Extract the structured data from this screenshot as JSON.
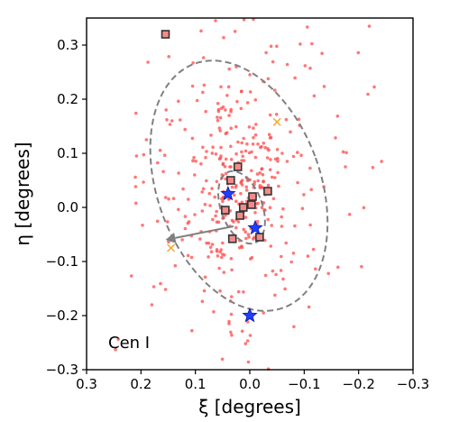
{
  "chart_data": {
    "type": "scatter",
    "title": "",
    "xlabel": "ξ [degrees]",
    "ylabel": "η [degrees]",
    "xlim": [
      0.3,
      -0.3
    ],
    "ylim": [
      -0.3,
      0.35
    ],
    "x_ticks": [
      0.3,
      0.2,
      0.1,
      0.0,
      -0.1,
      -0.2,
      -0.3
    ],
    "x_tick_labels": [
      "0.3",
      "0.2",
      "0.1",
      "0.0",
      "−0.1",
      "−0.2",
      "−0.3"
    ],
    "y_ticks": [
      -0.3,
      -0.2,
      -0.1,
      0.0,
      0.1,
      0.2,
      0.3
    ],
    "y_tick_labels": [
      "−0.3",
      "−0.2",
      "−0.1",
      "0.0",
      "0.1",
      "0.2",
      "0.3"
    ],
    "grid": false,
    "annotation": "Cen I",
    "colors": {
      "members": "#ff4a4a",
      "squares": "#333333",
      "stars": "#1f3fff",
      "crosses": "#f5a623",
      "ellipse": "#808080",
      "arrow": "#808080"
    },
    "ellipses": [
      {
        "name": "outer",
        "center": [
          0.02,
          0.04
        ],
        "semi_axes": [
          0.15,
          0.24
        ],
        "position_angle_deg": 20
      },
      {
        "name": "inner",
        "center": [
          0.015,
          0.0
        ],
        "semi_axes": [
          0.038,
          0.07
        ],
        "position_angle_deg": 20
      }
    ],
    "arrow": {
      "from": [
        0.03,
        -0.035
      ],
      "to": [
        0.155,
        -0.06
      ]
    },
    "squares": [
      [
        0.155,
        0.32
      ],
      [
        0.022,
        0.075
      ],
      [
        0.035,
        0.05
      ],
      [
        0.045,
        -0.005
      ],
      [
        0.012,
        0.0
      ],
      [
        0.018,
        -0.015
      ],
      [
        -0.005,
        0.02
      ],
      [
        -0.033,
        0.03
      ],
      [
        -0.003,
        0.005
      ],
      [
        -0.018,
        -0.055
      ],
      [
        0.032,
        -0.058
      ]
    ],
    "stars": [
      [
        0.04,
        0.025
      ],
      [
        -0.01,
        -0.038
      ],
      [
        0.0,
        -0.2
      ]
    ],
    "crosses": [
      [
        -0.05,
        0.158
      ],
      [
        0.145,
        -0.075
      ]
    ],
    "scatter_count": 420,
    "scatter_seed": 7
  }
}
